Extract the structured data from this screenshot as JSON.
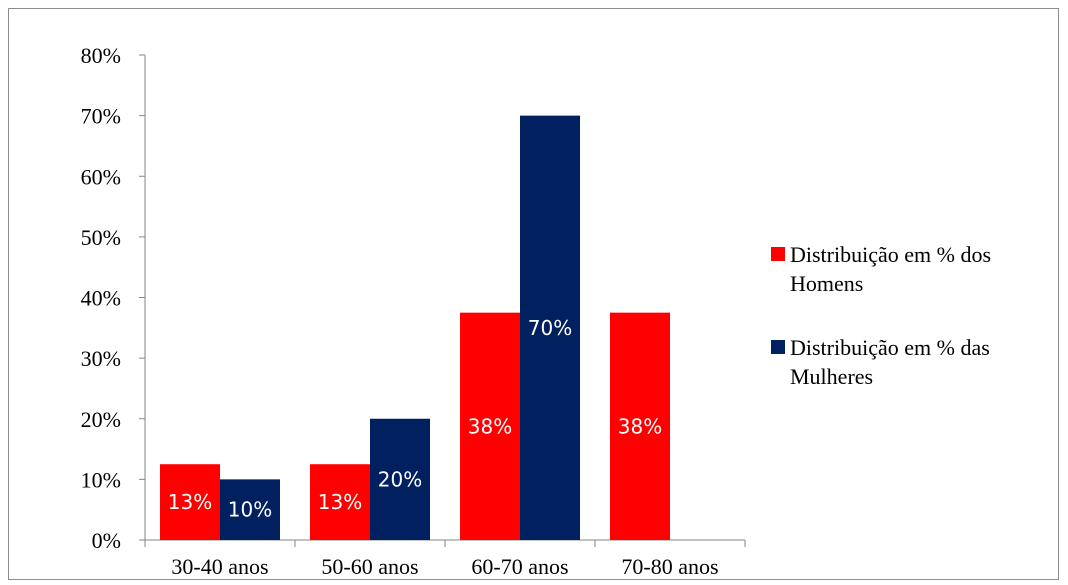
{
  "chart_data": {
    "type": "bar",
    "categories": [
      "30-40 anos",
      "50-60 anos",
      "60-70 anos",
      "70-80 anos"
    ],
    "series": [
      {
        "name": "Distribuição em % dos Homens",
        "color": "#ff0000",
        "values": [
          12.5,
          12.5,
          37.5,
          37.5
        ],
        "labels": [
          "13%",
          "13%",
          "38%",
          "38%"
        ]
      },
      {
        "name": "Distribuição em % das Mulheres",
        "color": "#002060",
        "values": [
          10,
          20,
          70,
          null
        ],
        "labels": [
          "10%",
          "20%",
          "70%",
          null
        ]
      }
    ],
    "yticks": [
      "0%",
      "10%",
      "20%",
      "30%",
      "40%",
      "50%",
      "60%",
      "70%",
      "80%"
    ],
    "ylim": [
      0,
      80
    ],
    "grid": false,
    "legend_position": "right"
  },
  "legend": {
    "items": [
      {
        "lines": [
          "Distribuição em % dos",
          "Homens"
        ]
      },
      {
        "lines": [
          "Distribuição em % das",
          "Mulheres"
        ]
      }
    ]
  }
}
